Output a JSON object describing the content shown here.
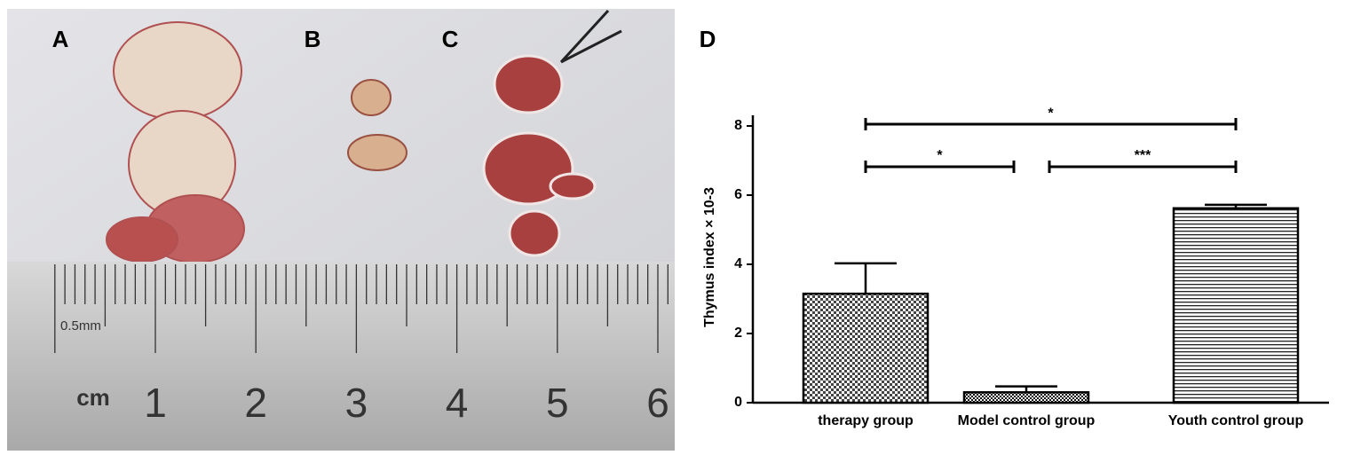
{
  "photo": {
    "labels": [
      "A",
      "B",
      "C"
    ],
    "ruler": {
      "unit": "cm",
      "note": "0.5mm",
      "numbers": [
        1,
        2,
        3,
        4,
        5,
        6
      ]
    }
  },
  "chart_label": "D",
  "chart_data": {
    "type": "bar",
    "ylabel": "Thymus index × 10-3",
    "categories": [
      "therapy group",
      "Model control group",
      "Youth control group"
    ],
    "values": [
      3.15,
      0.3,
      5.62
    ],
    "errors": [
      0.88,
      0.17,
      0.1
    ],
    "patterns": [
      "checker",
      "checker-fine",
      "hlines"
    ],
    "ylim": [
      0,
      8
    ],
    "yticks": [
      0,
      2,
      4,
      6,
      8
    ],
    "significance": [
      {
        "from": 0,
        "to": 2,
        "y": 8.05,
        "label": "*"
      },
      {
        "from": 0,
        "to": 1,
        "y": 6.82,
        "label": "*"
      },
      {
        "from": 1,
        "to": 2,
        "y": 6.82,
        "label": "***"
      }
    ]
  }
}
